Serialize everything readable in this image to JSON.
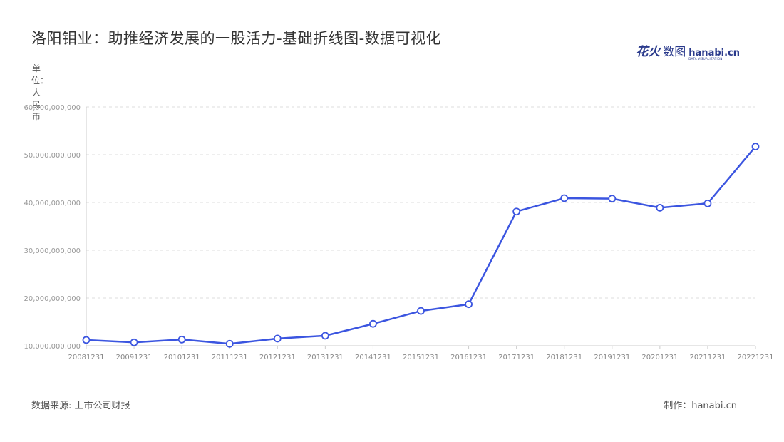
{
  "header": {
    "title": "洛阳钼业：助推经济发展的一股活力-基础折线图-数据可视化",
    "brand_cn_a": "花火",
    "brand_cn_b": "数图",
    "brand_en": "hanabi.cn",
    "brand_en_sub": "DATA VISUALIZATION"
  },
  "footer": {
    "source": "数据来源: 上市公司财报",
    "maker": "制作：hanabi.cn"
  },
  "colors": {
    "line": "#3b55e0",
    "grid": "#dddddd",
    "axis": "#cccccc",
    "point_fill": "#ffffff"
  },
  "chart_data": {
    "type": "line",
    "title": "洛阳钼业：助推经济发展的一股活力-基础折线图-数据可视化",
    "ylabel": "单位：人民币",
    "xlabel": "",
    "ylim": [
      10000000000,
      60000000000
    ],
    "yticks": [
      10000000000,
      20000000000,
      30000000000,
      40000000000,
      50000000000,
      60000000000
    ],
    "ytick_labels": [
      "10,000,000,000",
      "20,000,000,000",
      "30,000,000,000",
      "40,000,000,000",
      "50,000,000,000",
      "60,000,000,000"
    ],
    "grid": true,
    "categories": [
      "20081231",
      "20091231",
      "20101231",
      "20111231",
      "20121231",
      "20131231",
      "20141231",
      "20151231",
      "20161231",
      "20171231",
      "20181231",
      "20191231",
      "20201231",
      "20211231",
      "20221231"
    ],
    "series": [
      {
        "values": [
          11200000000,
          10700000000,
          11300000000,
          10400000000,
          11500000000,
          12100000000,
          14600000000,
          17300000000,
          18700000000,
          38100000000,
          40900000000,
          40800000000,
          38900000000,
          39800000000,
          51700000000
        ]
      }
    ]
  }
}
